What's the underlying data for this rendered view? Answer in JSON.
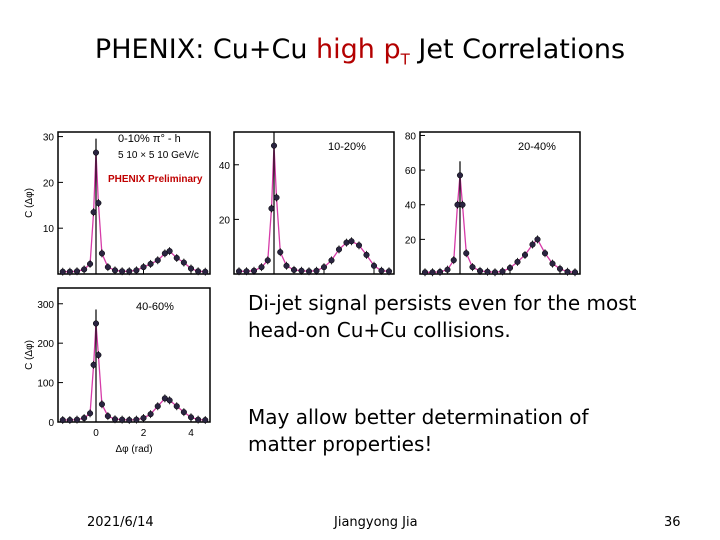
{
  "slide": {
    "title_prefix": "PHENIX: Cu+Cu ",
    "title_highlight": "high p",
    "title_sub": "T",
    "title_suffix": " Jet Correlations",
    "accent_color": "#b30000",
    "bullet1": "Di-jet signal persists even for the most head-on Cu+Cu collisions.",
    "bullet2": "May allow better determination of matter properties!",
    "footer_date": "2021/6/14",
    "footer_author": "Jiangyong Jia",
    "footer_page": "36"
  },
  "chart_data": [
    {
      "type": "scatter",
      "panel": "0-10%",
      "title": "0-10%  π° - h",
      "subtitle": "5 10 × 5 10 GeV/c",
      "annotation": "PHENIX Preliminary",
      "ylabel": "C (Δφ)",
      "xlabel": "",
      "ylim": [
        0,
        31
      ],
      "yticks": [
        10,
        20,
        30
      ],
      "x": [
        -1.4,
        -1.1,
        -0.8,
        -0.5,
        -0.25,
        -0.1,
        0.0,
        0.1,
        0.25,
        0.5,
        0.8,
        1.1,
        1.4,
        1.7,
        2.0,
        2.3,
        2.6,
        2.9,
        3.1,
        3.4,
        3.7,
        4.0,
        4.3,
        4.6
      ],
      "y": [
        0.5,
        0.5,
        0.6,
        1.0,
        2.2,
        13.5,
        26.5,
        15.5,
        4.5,
        1.5,
        0.8,
        0.6,
        0.6,
        0.8,
        1.5,
        2.2,
        3.0,
        4.5,
        5.0,
        3.5,
        2.5,
        1.2,
        0.6,
        0.5
      ],
      "fit_color": "#d63ba8"
    },
    {
      "type": "scatter",
      "panel": "10-20%",
      "title": "10-20%",
      "ylabel": "",
      "xlabel": "",
      "ylim": [
        0,
        52
      ],
      "yticks": [
        20,
        40
      ],
      "x": [
        -1.4,
        -1.1,
        -0.8,
        -0.5,
        -0.25,
        -0.1,
        0.0,
        0.1,
        0.25,
        0.5,
        0.8,
        1.1,
        1.4,
        1.7,
        2.0,
        2.3,
        2.6,
        2.9,
        3.1,
        3.4,
        3.7,
        4.0,
        4.3,
        4.6
      ],
      "y": [
        1.0,
        1.0,
        1.2,
        2.5,
        5.0,
        24.0,
        47.0,
        28.0,
        8.0,
        3.0,
        1.5,
        1.2,
        1.0,
        1.2,
        2.5,
        5.0,
        9.0,
        11.5,
        12.0,
        10.5,
        7.0,
        3.0,
        1.2,
        1.0
      ],
      "fit_color": "#d63ba8"
    },
    {
      "type": "scatter",
      "panel": "20-40%",
      "title": "20-40%",
      "ylabel": "",
      "xlabel": "",
      "ylim": [
        0,
        82
      ],
      "yticks": [
        20,
        40,
        60,
        80
      ],
      "x": [
        -1.4,
        -1.1,
        -0.8,
        -0.5,
        -0.25,
        -0.1,
        0.0,
        0.1,
        0.25,
        0.5,
        0.8,
        1.1,
        1.4,
        1.7,
        2.0,
        2.3,
        2.6,
        2.9,
        3.1,
        3.4,
        3.7,
        4.0,
        4.3,
        4.6
      ],
      "y": [
        1.0,
        1.0,
        1.2,
        2.5,
        8.0,
        40.0,
        57.0,
        40.0,
        12.0,
        4.0,
        1.8,
        1.3,
        1.0,
        1.5,
        3.5,
        7.0,
        11.0,
        17.0,
        20.0,
        12.0,
        6.0,
        3.0,
        1.3,
        1.0
      ],
      "fit_color": "#d63ba8"
    },
    {
      "type": "scatter",
      "panel": "40-60%",
      "title": "40-60%",
      "ylabel": "C (Δφ)",
      "xlabel": "Δφ (rad)",
      "ylim": [
        0,
        340
      ],
      "yticks": [
        0,
        100,
        200,
        300
      ],
      "xlim": [
        -1.6,
        4.8
      ],
      "xticks": [
        0,
        2,
        4
      ],
      "x": [
        -1.4,
        -1.1,
        -0.8,
        -0.5,
        -0.25,
        -0.1,
        0.0,
        0.1,
        0.25,
        0.5,
        0.8,
        1.1,
        1.4,
        1.7,
        2.0,
        2.3,
        2.6,
        2.9,
        3.1,
        3.4,
        3.7,
        4.0,
        4.3,
        4.6
      ],
      "y": [
        5,
        5,
        6,
        10,
        22,
        145,
        250,
        170,
        45,
        15,
        7,
        6,
        5,
        6,
        10,
        20,
        40,
        60,
        55,
        40,
        25,
        12,
        6,
        5
      ],
      "fit_color": "#d63ba8"
    }
  ]
}
